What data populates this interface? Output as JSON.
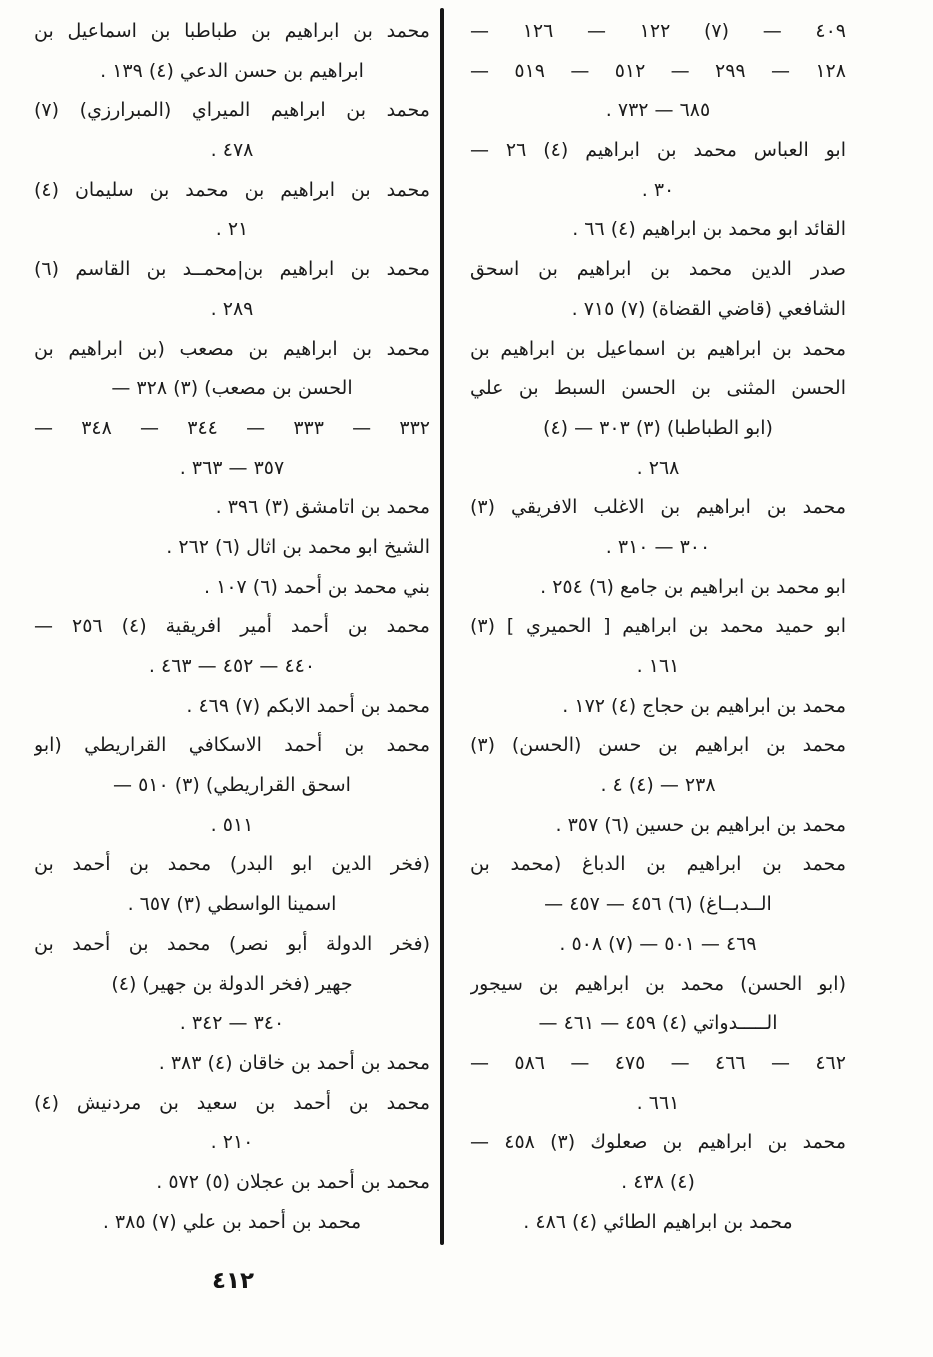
{
  "page": {
    "number_label": "٤١٢"
  },
  "index": {
    "right_column": {
      "lines": [
        {
          "text": "٤٠٩ — (٧) ١٢٢ — ١٢٦ —",
          "align": "justify"
        },
        {
          "text": "١٢٨ — ٢٩٩ — ٥١٢ — ٥١٩ —",
          "align": "justify"
        },
        {
          "text": "٦٨٥ — ٧٣٢ .",
          "align": "center"
        },
        {
          "text": "ابو العباس محمد بن ابراهيم (٤) ٢٦ —",
          "align": "justify"
        },
        {
          "text": "٣٠ .",
          "align": "center"
        },
        {
          "text": "القائد ابو محمد بن ابراهيم (٤) ٦٦ .",
          "align": "right"
        },
        {
          "text": "صدر الدين محمد بن ابراهيم بن اسحق",
          "align": "justify"
        },
        {
          "text": "الشافعي (قاضي القضاة) (٧) ٧١٥ .",
          "align": "right"
        },
        {
          "text": "محمد بن ابراهيم بن اسماعيل بن ابراهيم بن",
          "align": "justify"
        },
        {
          "text": "الحسن المثنى بن الحسن السبط بن علي",
          "align": "justify"
        },
        {
          "text": "(ابو الطباطبا) (٣) ٣٠٣ — (٤)",
          "align": "center"
        },
        {
          "text": "٢٦٨ .",
          "align": "center"
        },
        {
          "text": "محمد بن ابراهيم بن الاغلب الافريقي (٣)",
          "align": "justify"
        },
        {
          "text": "٣٠٠ — ٣١٠ .",
          "align": "center"
        },
        {
          "text": "ابو محمد بن ابراهيم بن جامع (٦) ٢٥٤ .",
          "align": "right"
        },
        {
          "text": "ابو حميد محمد بن ابراهيم [ الحميري ] (٣)",
          "align": "justify"
        },
        {
          "text": "١٦١ .",
          "align": "center"
        },
        {
          "text": "محمد بن ابراهيم بن حجاج (٤) ١٧٢ .",
          "align": "right"
        },
        {
          "text": "محمد بن ابراهيم بن حسن (الحسن) (٣)",
          "align": "justify"
        },
        {
          "text": "٢٣٨ — (٤) ٤ .",
          "align": "center"
        },
        {
          "text": "محمد بن ابراهيم بن حسين (٦) ٣٥٧ .",
          "align": "right"
        },
        {
          "text": "محمد بن ابراهيم بن الدباغ (محمد بن",
          "align": "justify"
        },
        {
          "text": "الــدبــاغ) (٦) ٤٥٦ — ٤٥٧ —",
          "align": "center"
        },
        {
          "text": "٤٦٩ — ٥٠١ — (٧) ٥٠٨ .",
          "align": "center"
        },
        {
          "text": "(ابو الحسن) محمد بن ابراهيم بن سيجور",
          "align": "justify"
        },
        {
          "text": "الـــــدواتي (٤) ٤٥٩ — ٤٦١ —",
          "align": "center"
        },
        {
          "text": "٤٦٢ — ٤٦٦ — ٤٧٥ — ٥٨٦ —",
          "align": "justify"
        },
        {
          "text": "٦٦١ .",
          "align": "center"
        },
        {
          "text": "محمد بن ابراهيم بن صعلوك (٣) ٤٥٨ —",
          "align": "justify"
        },
        {
          "text": "(٤) ٤٣٨ .",
          "align": "center"
        },
        {
          "text": "محمد بن ابراهيم الطائي (٤) ٤٨٦ .",
          "align": "center"
        }
      ]
    },
    "left_column": {
      "lines": [
        {
          "text": "محمد بن ابراهيم بن طباطبا بن اسماعيل بن",
          "align": "justify"
        },
        {
          "text": "ابراهيم بن حسن الدعي (٤) ١٣٩ .",
          "align": "center"
        },
        {
          "text": "محمد بن ابراهيم الميراي (المبرارزي) (٧)",
          "align": "justify"
        },
        {
          "text": "٤٧٨ .",
          "align": "center"
        },
        {
          "text": "محمد بن ابراهيم بن محمد بن سليمان (٤)",
          "align": "justify"
        },
        {
          "text": "٢١ .",
          "align": "center"
        },
        {
          "text": "محمد بن ابراهيم بن|محمــد بن القاسم (٦)",
          "align": "justify"
        },
        {
          "text": "٢٨٩ .",
          "align": "center"
        },
        {
          "text": "محمد بن ابراهيم بن مصعب (بن ابراهيم بن",
          "align": "justify"
        },
        {
          "text": "الحسن بن مصعب) (٣) ٣٢٨ —",
          "align": "center"
        },
        {
          "text": "٣٣٢ — ٣٣٣ — ٣٤٤ — ٣٤٨ —",
          "align": "justify"
        },
        {
          "text": "٣٥٧ — ٣٦٣ .",
          "align": "center"
        },
        {
          "text": "محمد بن اتامشق (٣) ٣٩٦ .",
          "align": "right"
        },
        {
          "text": "الشيخ ابو محمد بن اثال (٦) ٢٦٢ .",
          "align": "right"
        },
        {
          "text": "بني محمد بن أحمد (٦) ١٠٧ .",
          "align": "right"
        },
        {
          "text": "محمد بن أحمد أمير افريقية (٤) ٢٥٦ —",
          "align": "justify"
        },
        {
          "text": "٤٤٠ — ٤٥٢ — ٤٦٣ .",
          "align": "center"
        },
        {
          "text": "محمد بن أحمد الابكم (٧) ٤٦٩ .",
          "align": "right"
        },
        {
          "text": "محمد بن أحمد الاسكافي القراريطي (ابو",
          "align": "justify"
        },
        {
          "text": "اسحق القراريطي) (٣) ٥١٠ —",
          "align": "center"
        },
        {
          "text": "٥١١ .",
          "align": "center"
        },
        {
          "text": "(فخر الدين ابو البدر) محمد بن أحمد بن",
          "align": "justify"
        },
        {
          "text": "اسمينا الواسطي (٣) ٦٥٧ .",
          "align": "center"
        },
        {
          "text": "(فخر الدولة أبو نصر) محمد بن أحمد بن",
          "align": "justify"
        },
        {
          "text": "جهير (فخر الدولة بن جهير) (٤)",
          "align": "center"
        },
        {
          "text": "٣٤٠ — ٣٤٢ .",
          "align": "center"
        },
        {
          "text": "محمد بن أحمد بن خاقان (٤) ٣٨٣ .",
          "align": "right"
        },
        {
          "text": "محمد بن أحمد بن سعيد بن مردنيش (٤)",
          "align": "justify"
        },
        {
          "text": "٢١٠ .",
          "align": "center"
        },
        {
          "text": "محمد بن أحمد بن عجلان (٥) ٥٧٢ .",
          "align": "right"
        },
        {
          "text": "محمد بن أحمد بن علي (٧) ٣٨٥ .",
          "align": "center"
        }
      ]
    }
  }
}
